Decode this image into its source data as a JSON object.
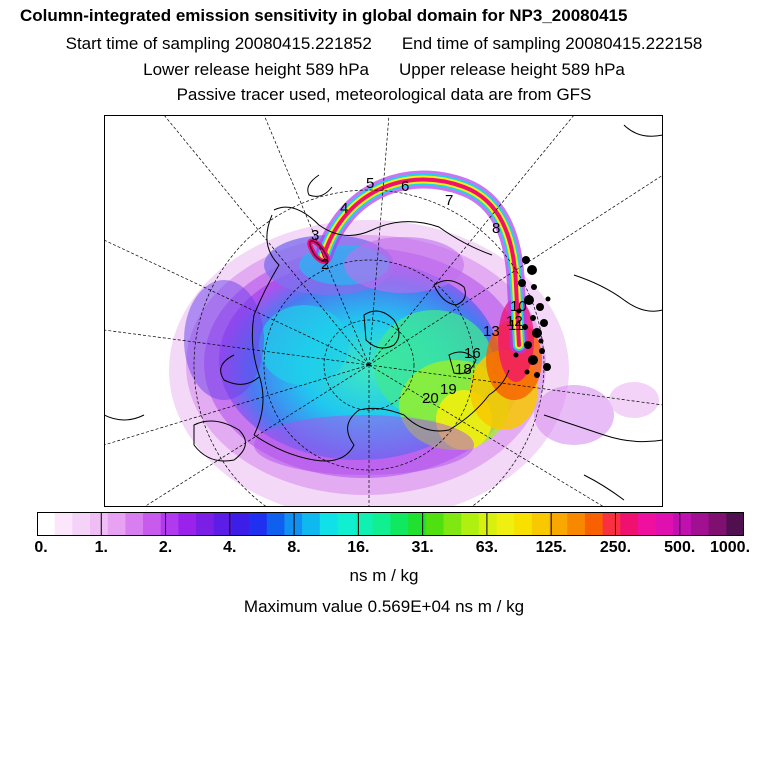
{
  "header": {
    "title": "Column-integrated emission sensitivity in global domain for NP3_20080415",
    "start_label": "Start time of sampling 20080415.221852",
    "end_label": "End time of sampling 20080415.222158",
    "lower_label": "Lower release height  589 hPa",
    "upper_label": "Upper release height  589 hPa",
    "note": "Passive tracer used, meteorological data are from GFS"
  },
  "map": {
    "trajectory_labels": [
      "2",
      "3",
      "4",
      "5",
      "6",
      "7",
      "8",
      "10",
      "11",
      "12",
      "13",
      "16",
      "18",
      "19",
      "20"
    ]
  },
  "colorbar": {
    "colors": [
      "#ffffff",
      "#fbe6fb",
      "#f5d2f7",
      "#efbef5",
      "#e8a2f2",
      "#d87ef0",
      "#c85aee",
      "#b23aee",
      "#9a22ea",
      "#7b1ee6",
      "#5c1ee6",
      "#3c1ee8",
      "#2030f0",
      "#1060f0",
      "#1090f0",
      "#10b8f0",
      "#10e0e8",
      "#10f0d0",
      "#10f0b0",
      "#10f090",
      "#10e860",
      "#20e030",
      "#50e010",
      "#80e810",
      "#b0f010",
      "#d8f010",
      "#f0f010",
      "#f8e000",
      "#f8c800",
      "#f8a800",
      "#f88800",
      "#f86000",
      "#f83040",
      "#f01070",
      "#f010a0",
      "#e010b0",
      "#c010b0",
      "#a01090",
      "#801070",
      "#501050"
    ],
    "major_colors_approx": "white to dark purple",
    "tick_labels": [
      "0.",
      "1.",
      "2.",
      "4.",
      "8.",
      "16.",
      "31.",
      "63.",
      "125.",
      "250.",
      "500.",
      "1000."
    ],
    "units": "ns m / kg",
    "max_label": "Maximum value  0.569E+04 ns m / kg"
  }
}
